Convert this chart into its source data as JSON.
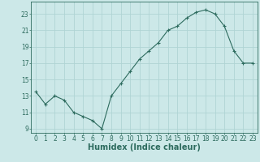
{
  "x": [
    0,
    1,
    2,
    3,
    4,
    5,
    6,
    7,
    8,
    9,
    10,
    11,
    12,
    13,
    14,
    15,
    16,
    17,
    18,
    19,
    20,
    21,
    22,
    23
  ],
  "y": [
    13.5,
    12.0,
    13.0,
    12.5,
    11.0,
    10.5,
    10.0,
    9.0,
    13.0,
    14.5,
    16.0,
    17.5,
    18.5,
    19.5,
    21.0,
    21.5,
    22.5,
    23.2,
    23.5,
    23.0,
    21.5,
    18.5,
    17.0,
    17.0
  ],
  "line_color": "#2d6b5e",
  "marker": "+",
  "marker_size": 3,
  "marker_lw": 0.8,
  "line_width": 0.8,
  "xlabel": "Humidex (Indice chaleur)",
  "xlabel_fontsize": 7,
  "bg_color": "#cce8e8",
  "grid_color": "#b0d4d4",
  "tick_color": "#2d6b5e",
  "label_color": "#2d6b5e",
  "ylim": [
    8.5,
    24.5
  ],
  "xlim": [
    -0.5,
    23.5
  ],
  "yticks": [
    9,
    11,
    13,
    15,
    17,
    19,
    21,
    23
  ],
  "xtick_labels": [
    "0",
    "1",
    "2",
    "3",
    "4",
    "5",
    "6",
    "7",
    "8",
    "9",
    "10",
    "11",
    "12",
    "13",
    "14",
    "15",
    "16",
    "17",
    "18",
    "19",
    "20",
    "21",
    "22",
    "23"
  ],
  "tick_fontsize": 5.5
}
